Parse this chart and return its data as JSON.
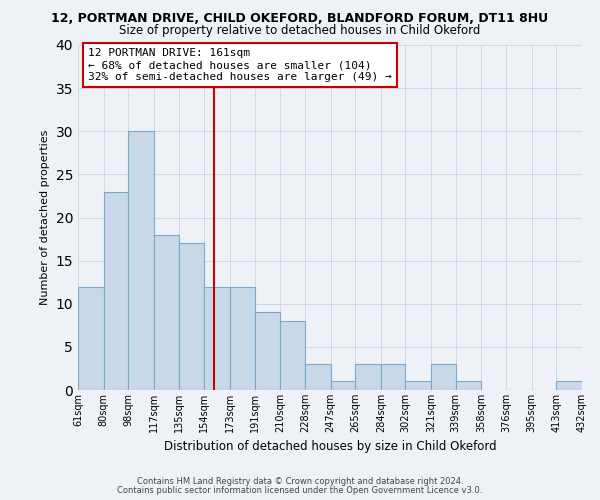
{
  "title_line1": "12, PORTMAN DRIVE, CHILD OKEFORD, BLANDFORD FORUM, DT11 8HU",
  "title_line2": "Size of property relative to detached houses in Child Okeford",
  "xlabel": "Distribution of detached houses by size in Child Okeford",
  "ylabel": "Number of detached properties",
  "bar_color": "#c8d8e8",
  "bar_edge_color": "#7aaac8",
  "background_color": "#eef2f7",
  "bins": [
    61,
    80,
    98,
    117,
    135,
    154,
    173,
    191,
    210,
    228,
    247,
    265,
    284,
    302,
    321,
    339,
    358,
    376,
    395,
    413,
    432
  ],
  "counts": [
    12,
    23,
    30,
    18,
    17,
    12,
    12,
    9,
    8,
    3,
    1,
    3,
    3,
    1,
    3,
    1,
    0,
    0,
    0,
    1
  ],
  "tick_labels": [
    "61sqm",
    "80sqm",
    "98sqm",
    "117sqm",
    "135sqm",
    "154sqm",
    "173sqm",
    "191sqm",
    "210sqm",
    "228sqm",
    "247sqm",
    "265sqm",
    "284sqm",
    "302sqm",
    "321sqm",
    "339sqm",
    "358sqm",
    "376sqm",
    "395sqm",
    "413sqm",
    "432sqm"
  ],
  "vline_x": 161,
  "vline_color": "#cc0000",
  "annotation_text": "12 PORTMAN DRIVE: 161sqm\n← 68% of detached houses are smaller (104)\n32% of semi-detached houses are larger (49) →",
  "annotation_box_color": "#ffffff",
  "annotation_box_edge": "#cc0000",
  "ylim": [
    0,
    40
  ],
  "yticks": [
    0,
    5,
    10,
    15,
    20,
    25,
    30,
    35,
    40
  ],
  "footer_line1": "Contains HM Land Registry data © Crown copyright and database right 2024.",
  "footer_line2": "Contains public sector information licensed under the Open Government Licence v3.0.",
  "grid_color": "#d0d8e4"
}
